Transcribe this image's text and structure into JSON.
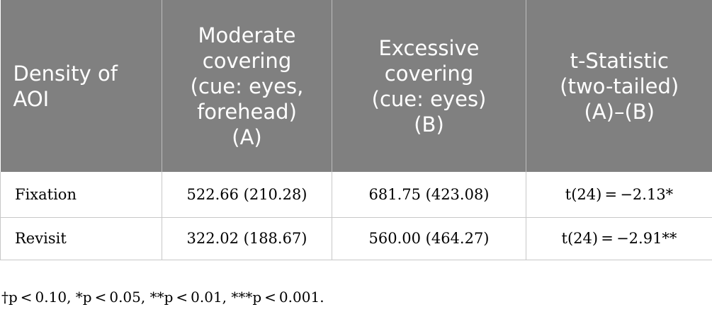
{
  "table": {
    "header": [
      "Density of\nAOI",
      "Moderate\ncovering\n(cue: eyes,\nforehead)\n(A)",
      "Excessive\ncovering\n(cue: eyes)\n(B)",
      "t-Statistic\n(two-tailed)\n(A)–(B)"
    ],
    "rows": [
      [
        "Fixation",
        "522.66 (210.28)",
        "681.75 (423.08)",
        "t(24) = −2.13*"
      ],
      [
        "Revisit",
        "322.02 (188.67)",
        "560.00 (464.27)",
        "t(24) = −2.91**"
      ]
    ]
  },
  "footnote": "†p < 0.10, *p < 0.05, **p < 0.01, ***p < 0.001."
}
